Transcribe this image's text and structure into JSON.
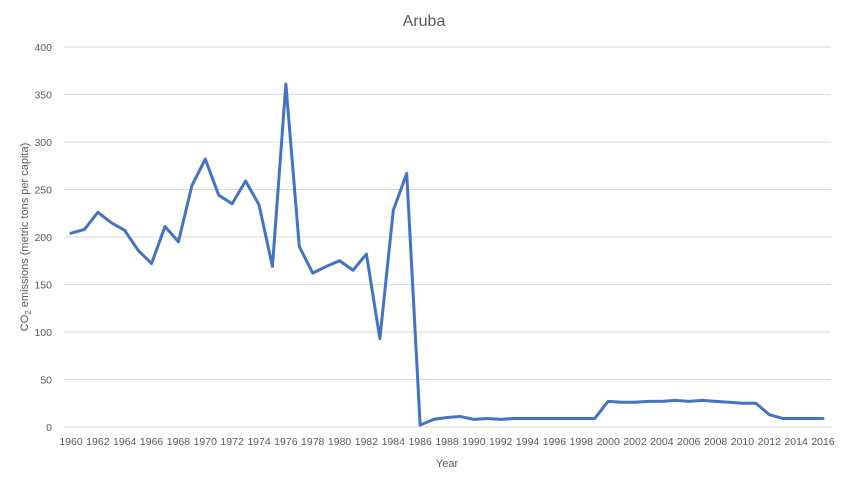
{
  "chart_data": {
    "type": "line",
    "title": "Aruba",
    "xlabel": "Year",
    "ylabel_prefix": "CO",
    "ylabel_subscript": "2",
    "ylabel_suffix": " emissions  (metric tons per capita)",
    "ylim": [
      0,
      400
    ],
    "yticks": [
      0,
      50,
      100,
      150,
      200,
      250,
      300,
      350,
      400
    ],
    "xticks": [
      1960,
      1962,
      1964,
      1966,
      1968,
      1970,
      1972,
      1974,
      1976,
      1978,
      1980,
      1982,
      1984,
      1986,
      1988,
      1990,
      1992,
      1994,
      1996,
      1998,
      2000,
      2002,
      2004,
      2006,
      2008,
      2010,
      2012,
      2014,
      2016
    ],
    "grid": true,
    "legend": "none",
    "color": "#4472c4",
    "x": [
      1960,
      1961,
      1962,
      1963,
      1964,
      1965,
      1966,
      1967,
      1968,
      1969,
      1970,
      1971,
      1972,
      1973,
      1974,
      1975,
      1976,
      1977,
      1978,
      1979,
      1980,
      1981,
      1982,
      1983,
      1984,
      1985,
      1986,
      1987,
      1988,
      1989,
      1990,
      1991,
      1992,
      1993,
      1994,
      1995,
      1996,
      1997,
      1998,
      1999,
      2000,
      2001,
      2002,
      2003,
      2004,
      2005,
      2006,
      2007,
      2008,
      2009,
      2010,
      2011,
      2012,
      2013,
      2014,
      2015,
      2016
    ],
    "values": [
      204,
      208,
      226,
      215,
      207,
      186,
      172,
      211,
      195,
      254,
      282,
      244,
      235,
      259,
      234,
      169,
      361,
      190,
      162,
      169,
      175,
      165,
      182,
      93,
      228,
      267,
      2,
      8,
      10,
      11,
      8,
      9,
      8,
      9,
      9,
      9,
      9,
      9,
      9,
      9,
      27,
      26,
      26,
      27,
      27,
      28,
      27,
      28,
      27,
      26,
      25,
      25,
      13,
      9,
      9,
      9,
      9
    ]
  }
}
